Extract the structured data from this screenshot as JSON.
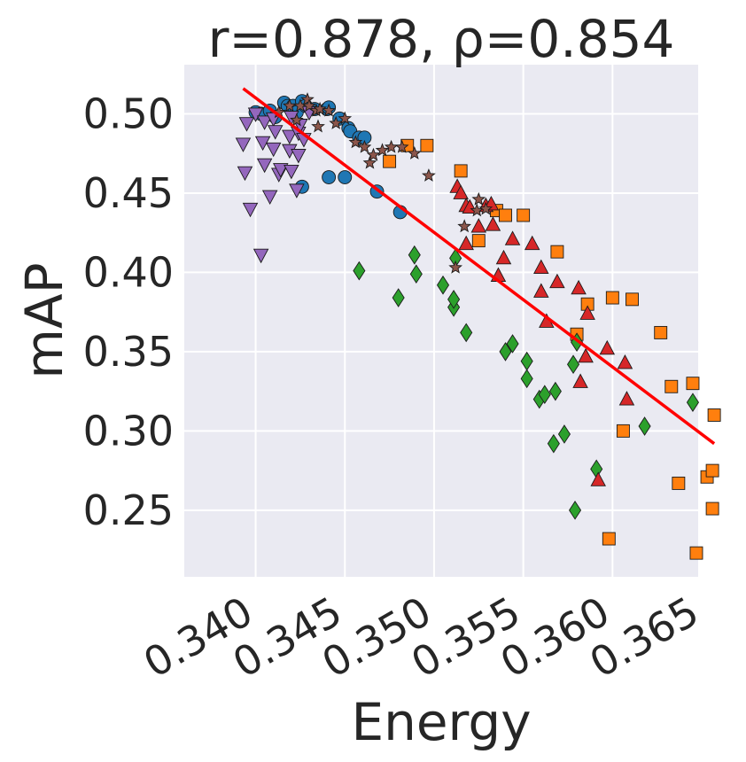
{
  "chart_data": {
    "type": "scatter",
    "title": "r=0.878, ρ=0.854",
    "xlabel": "Energy",
    "ylabel": "mAP",
    "xlim": [
      0.336,
      0.3648
    ],
    "ylim": [
      0.208,
      0.531
    ],
    "xticks": [
      0.34,
      0.345,
      0.35,
      0.355,
      0.36,
      0.365
    ],
    "xtick_labels": [
      "0.340",
      "0.345",
      "0.350",
      "0.355",
      "0.360",
      "0.365"
    ],
    "yticks": [
      0.25,
      0.3,
      0.35,
      0.4,
      0.45,
      0.5
    ],
    "ytick_labels": [
      "0.25",
      "0.30",
      "0.35",
      "0.40",
      "0.45",
      "0.50"
    ],
    "grid": true,
    "background": "#eaeaf2",
    "fit_line": {
      "color": "#ff0000",
      "x": [
        0.3393,
        0.3657
      ],
      "y": [
        0.516,
        0.292
      ]
    },
    "series": [
      {
        "name": "series-blue-circles",
        "marker": "circle",
        "color": "#1f77b4",
        "points": [
          [
            0.34,
            0.501
          ],
          [
            0.3403,
            0.5
          ],
          [
            0.3408,
            0.502
          ],
          [
            0.3411,
            0.498
          ],
          [
            0.3416,
            0.507
          ],
          [
            0.3418,
            0.505
          ],
          [
            0.3421,
            0.505
          ],
          [
            0.3423,
            0.501
          ],
          [
            0.3426,
            0.508
          ],
          [
            0.3426,
            0.454
          ],
          [
            0.3428,
            0.505
          ],
          [
            0.3433,
            0.503
          ],
          [
            0.344,
            0.503
          ],
          [
            0.3441,
            0.46
          ],
          [
            0.3441,
            0.504
          ],
          [
            0.3447,
            0.497
          ],
          [
            0.345,
            0.46
          ],
          [
            0.3452,
            0.491
          ],
          [
            0.3453,
            0.489
          ],
          [
            0.3458,
            0.485
          ],
          [
            0.3461,
            0.485
          ],
          [
            0.3468,
            0.451
          ],
          [
            0.3481,
            0.438
          ]
        ]
      },
      {
        "name": "series-orange-squares",
        "marker": "square",
        "color": "#ff7f0e",
        "points": [
          [
            0.3475,
            0.47
          ],
          [
            0.3485,
            0.48
          ],
          [
            0.3496,
            0.48
          ],
          [
            0.3515,
            0.464
          ],
          [
            0.3525,
            0.42
          ],
          [
            0.3535,
            0.439
          ],
          [
            0.354,
            0.436
          ],
          [
            0.355,
            0.436
          ],
          [
            0.3569,
            0.413
          ],
          [
            0.358,
            0.361
          ],
          [
            0.3586,
            0.38
          ],
          [
            0.3598,
            0.232
          ],
          [
            0.36,
            0.384
          ],
          [
            0.3606,
            0.3
          ],
          [
            0.3611,
            0.383
          ],
          [
            0.3627,
            0.362
          ],
          [
            0.3633,
            0.328
          ],
          [
            0.3637,
            0.267
          ],
          [
            0.3645,
            0.33
          ],
          [
            0.3647,
            0.223
          ],
          [
            0.3653,
            0.271
          ],
          [
            0.3656,
            0.275
          ],
          [
            0.3656,
            0.251
          ],
          [
            0.3657,
            0.31
          ]
        ]
      },
      {
        "name": "series-green-diamonds",
        "marker": "diamond",
        "color": "#2ca02c",
        "points": [
          [
            0.3458,
            0.401
          ],
          [
            0.348,
            0.384
          ],
          [
            0.3489,
            0.411
          ],
          [
            0.349,
            0.399
          ],
          [
            0.3505,
            0.392
          ],
          [
            0.3511,
            0.378
          ],
          [
            0.3511,
            0.383
          ],
          [
            0.3512,
            0.409
          ],
          [
            0.3518,
            0.362
          ],
          [
            0.354,
            0.35
          ],
          [
            0.3544,
            0.355
          ],
          [
            0.3552,
            0.344
          ],
          [
            0.3552,
            0.333
          ],
          [
            0.3559,
            0.32
          ],
          [
            0.3562,
            0.323
          ],
          [
            0.3567,
            0.292
          ],
          [
            0.3568,
            0.325
          ],
          [
            0.3573,
            0.298
          ],
          [
            0.3578,
            0.342
          ],
          [
            0.3579,
            0.25
          ],
          [
            0.358,
            0.356
          ],
          [
            0.3591,
            0.276
          ],
          [
            0.3618,
            0.303
          ],
          [
            0.3645,
            0.318
          ]
        ]
      },
      {
        "name": "series-red-triangles",
        "marker": "triangle-up",
        "color": "#d62728",
        "points": [
          [
            0.3513,
            0.454
          ],
          [
            0.3515,
            0.45
          ],
          [
            0.3518,
            0.442
          ],
          [
            0.3518,
            0.418
          ],
          [
            0.352,
            0.441
          ],
          [
            0.3525,
            0.429
          ],
          [
            0.3529,
            0.442
          ],
          [
            0.3532,
            0.443
          ],
          [
            0.3533,
            0.43
          ],
          [
            0.3536,
            0.398
          ],
          [
            0.3539,
            0.409
          ],
          [
            0.3544,
            0.421
          ],
          [
            0.3555,
            0.418
          ],
          [
            0.356,
            0.388
          ],
          [
            0.356,
            0.403
          ],
          [
            0.3563,
            0.369
          ],
          [
            0.3569,
            0.394
          ],
          [
            0.3581,
            0.39
          ],
          [
            0.3582,
            0.331
          ],
          [
            0.3585,
            0.347
          ],
          [
            0.3586,
            0.374
          ],
          [
            0.3592,
            0.269
          ],
          [
            0.3597,
            0.352
          ],
          [
            0.3607,
            0.343
          ],
          [
            0.3608,
            0.32
          ]
        ]
      },
      {
        "name": "series-purple-down-triangles",
        "marker": "triangle-down",
        "color": "#9467bd",
        "points": [
          [
            0.3393,
            0.481
          ],
          [
            0.3394,
            0.463
          ],
          [
            0.3395,
            0.494
          ],
          [
            0.3397,
            0.44
          ],
          [
            0.34,
            0.5
          ],
          [
            0.3403,
            0.411
          ],
          [
            0.3404,
            0.482
          ],
          [
            0.3405,
            0.468
          ],
          [
            0.3405,
            0.495
          ],
          [
            0.3408,
            0.448
          ],
          [
            0.341,
            0.478
          ],
          [
            0.341,
            0.497
          ],
          [
            0.3411,
            0.489
          ],
          [
            0.3413,
            0.462
          ],
          [
            0.3414,
            0.465
          ],
          [
            0.3419,
            0.477
          ],
          [
            0.3419,
            0.486
          ],
          [
            0.342,
            0.498
          ],
          [
            0.342,
            0.464
          ],
          [
            0.3423,
            0.452
          ],
          [
            0.3424,
            0.474
          ],
          [
            0.3424,
            0.488
          ],
          [
            0.3425,
            0.493
          ],
          [
            0.3427,
            0.484
          ],
          [
            0.343,
            0.501
          ]
        ]
      },
      {
        "name": "series-brown-stars",
        "marker": "star",
        "color": "#8c564b",
        "points": [
          [
            0.3413,
            0.501
          ],
          [
            0.3419,
            0.505
          ],
          [
            0.3423,
            0.496
          ],
          [
            0.3425,
            0.505
          ],
          [
            0.3429,
            0.509
          ],
          [
            0.343,
            0.505
          ],
          [
            0.3434,
            0.502
          ],
          [
            0.3435,
            0.492
          ],
          [
            0.3436,
            0.503
          ],
          [
            0.3441,
            0.502
          ],
          [
            0.3445,
            0.494
          ],
          [
            0.345,
            0.497
          ],
          [
            0.3456,
            0.482
          ],
          [
            0.3461,
            0.479
          ],
          [
            0.3464,
            0.469
          ],
          [
            0.3466,
            0.474
          ],
          [
            0.3471,
            0.477
          ],
          [
            0.3476,
            0.479
          ],
          [
            0.3482,
            0.479
          ],
          [
            0.3489,
            0.475
          ],
          [
            0.3497,
            0.461
          ],
          [
            0.3512,
            0.403
          ],
          [
            0.3517,
            0.429
          ],
          [
            0.3524,
            0.439
          ],
          [
            0.3525,
            0.446
          ],
          [
            0.3529,
            0.44
          ]
        ]
      }
    ]
  }
}
